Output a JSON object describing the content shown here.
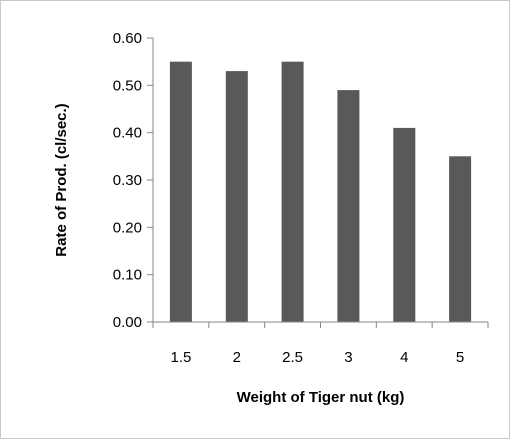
{
  "chart_data": {
    "type": "bar",
    "title": "",
    "xlabel": "Weight of Tiger nut (kg)",
    "ylabel": "Rate of Prod. (cl/sec.)",
    "categories": [
      "1.5",
      "2",
      "2.5",
      "3",
      "4",
      "5"
    ],
    "values": [
      0.55,
      0.53,
      0.55,
      0.49,
      0.41,
      0.35
    ],
    "ylim": [
      0,
      0.6
    ],
    "y_ticks": [
      "0.00",
      "0.10",
      "0.20",
      "0.30",
      "0.40",
      "0.50",
      "0.60"
    ],
    "grid": false,
    "legend": "none",
    "bar_color": "#595959"
  }
}
